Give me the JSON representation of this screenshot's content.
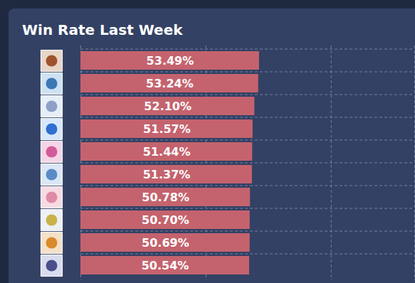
{
  "chart_data": {
    "type": "bar",
    "title": "Win Rate Last Week",
    "orientation": "horizontal",
    "categories": [
      null,
      null,
      null,
      null,
      null,
      null,
      null,
      null,
      null,
      null
    ],
    "values": [
      53.49,
      53.24,
      52.1,
      51.57,
      51.44,
      51.37,
      50.78,
      50.7,
      50.69,
      50.54
    ],
    "value_labels": [
      "53.49%",
      "53.24%",
      "52.10%",
      "51.57%",
      "51.44%",
      "51.37%",
      "50.78%",
      "50.70%",
      "50.69%",
      "50.54%"
    ],
    "color": "#c4636e",
    "xlim": [
      0,
      100
    ],
    "xticks": [
      0,
      37.5,
      75,
      100
    ],
    "grid": true,
    "data_labels": true,
    "tick_labels": false
  }
}
